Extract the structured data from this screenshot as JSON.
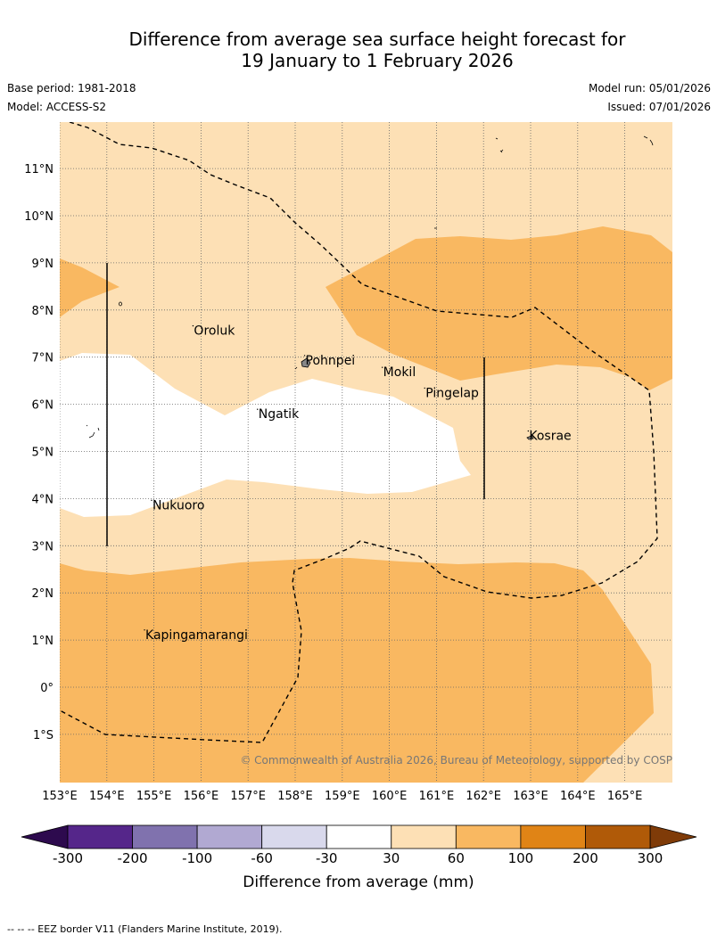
{
  "title": {
    "line1": "Difference from average sea surface height forecast for",
    "line2": "19 January to 1 February 2026"
  },
  "meta": {
    "base_period": "Base period: 1981-2018",
    "model": "Model: ACCESS-S2",
    "model_run": "Model run: 05/01/2026",
    "issued": "Issued: 07/01/2026"
  },
  "map": {
    "lat_labels": [
      {
        "lat": 11,
        "label": "11°N"
      },
      {
        "lat": 10,
        "label": "10°N"
      },
      {
        "lat": 9,
        "label": "9°N"
      },
      {
        "lat": 8,
        "label": "8°N"
      },
      {
        "lat": 7,
        "label": "7°N"
      },
      {
        "lat": 6,
        "label": "6°N"
      },
      {
        "lat": 5,
        "label": "5°N"
      },
      {
        "lat": 4,
        "label": "4°N"
      },
      {
        "lat": 3,
        "label": "3°N"
      },
      {
        "lat": 2,
        "label": "2°N"
      },
      {
        "lat": 1,
        "label": "1°N"
      },
      {
        "lat": 0,
        "label": "0°"
      },
      {
        "lat": -1,
        "label": "1°S"
      }
    ],
    "lon_labels": [
      {
        "lon": 153,
        "label": "153°E"
      },
      {
        "lon": 154,
        "label": "154°E"
      },
      {
        "lon": 155,
        "label": "155°E"
      },
      {
        "lon": 156,
        "label": "156°E"
      },
      {
        "lon": 157,
        "label": "157°E"
      },
      {
        "lon": 158,
        "label": "158°E"
      },
      {
        "lon": 159,
        "label": "159°E"
      },
      {
        "lon": 160,
        "label": "160°E"
      },
      {
        "lon": 161,
        "label": "161°E"
      },
      {
        "lon": 162,
        "label": "162°E"
      },
      {
        "lon": 163,
        "label": "163°E"
      },
      {
        "lon": 164,
        "label": "164°E"
      },
      {
        "lon": 165,
        "label": "165°E"
      }
    ],
    "places": [
      {
        "name": "Oroluk",
        "lon": 155.83,
        "lat": 7.55
      },
      {
        "name": "Pohnpei",
        "lon": 158.2,
        "lat": 6.92
      },
      {
        "name": "Mokil",
        "lon": 159.85,
        "lat": 6.67
      },
      {
        "name": "Pingelap",
        "lon": 160.75,
        "lat": 6.23
      },
      {
        "name": "Ngatik",
        "lon": 157.2,
        "lat": 5.78
      },
      {
        "name": "Kosrae",
        "lon": 162.95,
        "lat": 5.32
      },
      {
        "name": "Nukuoro",
        "lon": 154.95,
        "lat": 3.85
      },
      {
        "name": "Kapingamarangi",
        "lon": 154.8,
        "lat": 1.1
      }
    ],
    "copyright": "© Commonwealth of Australia 2026, Bureau of Meteorology, supported by COSPPac",
    "band_colors": {
      "light": "#fde0b5",
      "mid": "#f9b861"
    }
  },
  "colorbar": {
    "labels": [
      "-300",
      "-200",
      "-100",
      "-60",
      "-30",
      "30",
      "60",
      "100",
      "200",
      "300"
    ],
    "colors": [
      "#55268a",
      "#8072ae",
      "#b1a9d2",
      "#d9d9ec",
      "#ffffff",
      "#fde0b5",
      "#f9b861",
      "#e08416",
      "#b05a08"
    ],
    "under_color": "#2d0a4e",
    "over_color": "#7f3b08",
    "label": "Difference from average (mm)"
  },
  "footer": {
    "eez_note": "--  --  -- EEZ border V11 (Flanders Marine Institute, 2019)."
  }
}
